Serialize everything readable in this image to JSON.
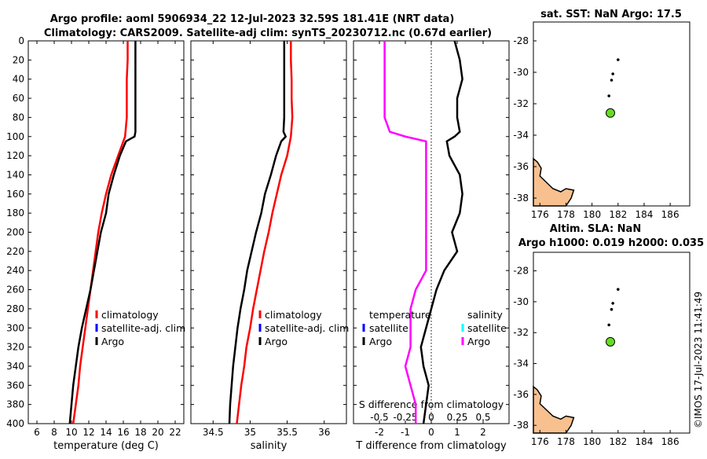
{
  "title_line1": "Argo profile: aoml 5906934_22 12-Jul-2023 32.59S 181.41E (NRT data)",
  "title_line2": "Climatology: CARS2009. Satellite-adj clim: synTS_20230712.nc (0.67d earlier)",
  "watermark": "©IMOS 17-Jul-2023 11:41:49",
  "colors": {
    "climatology": "#ff0000",
    "satellite": "#0000ff",
    "argo": "#000000",
    "argo_sal": "#ff00ff",
    "satellite_sal": "#00ffff",
    "land": "#f7c08e",
    "argo_dot": "#66dd22"
  },
  "depth_axis": {
    "ticks": [
      0,
      20,
      40,
      60,
      80,
      100,
      120,
      140,
      160,
      180,
      200,
      220,
      240,
      260,
      280,
      300,
      320,
      340,
      360,
      380,
      400
    ],
    "range": [
      0,
      400
    ]
  },
  "legend_main": {
    "climatology": "climatology",
    "satellite": "satellite-adj. clim",
    "argo": "Argo"
  },
  "legend_diff": {
    "temperature": "temperature",
    "salinity": "salinity",
    "satellite": "satellite",
    "argo": "Argo"
  },
  "chart_data": [
    {
      "type": "line",
      "xlabel": "temperature (deg C)",
      "xlim": [
        5,
        23
      ],
      "xticks": [
        6,
        8,
        10,
        12,
        14,
        16,
        18,
        20,
        22
      ],
      "series": [
        {
          "name": "climatology",
          "depth": [
            0,
            20,
            40,
            60,
            80,
            100,
            120,
            140,
            160,
            180,
            200,
            220,
            240,
            260,
            280,
            300,
            320,
            340,
            360,
            380,
            400
          ],
          "values": [
            16.5,
            16.5,
            16.4,
            16.4,
            16.4,
            16.2,
            15.4,
            14.6,
            14.0,
            13.5,
            13.1,
            12.8,
            12.5,
            12.2,
            11.9,
            11.6,
            11.3,
            11.0,
            10.8,
            10.5,
            10.2
          ]
        },
        {
          "name": "Argo",
          "depth": [
            0,
            20,
            40,
            60,
            80,
            95,
            100,
            105,
            120,
            140,
            160,
            180,
            200,
            220,
            240,
            260,
            280,
            300,
            320,
            340,
            360,
            380,
            400
          ],
          "values": [
            17.4,
            17.4,
            17.4,
            17.4,
            17.4,
            17.4,
            17.3,
            16.3,
            15.6,
            14.9,
            14.3,
            14.0,
            13.4,
            13.0,
            12.6,
            12.2,
            11.7,
            11.2,
            10.8,
            10.5,
            10.2,
            10.0,
            9.8
          ]
        }
      ]
    },
    {
      "type": "line",
      "xlabel": "salinity",
      "xlim": [
        34.2,
        36.3
      ],
      "xticks": [
        34.5,
        35,
        35.5,
        36
      ],
      "series": [
        {
          "name": "climatology",
          "depth": [
            0,
            20,
            40,
            60,
            80,
            100,
            120,
            140,
            160,
            180,
            200,
            220,
            240,
            260,
            280,
            300,
            320,
            340,
            360,
            380,
            400
          ],
          "values": [
            35.55,
            35.55,
            35.56,
            35.56,
            35.57,
            35.55,
            35.5,
            35.42,
            35.36,
            35.3,
            35.25,
            35.19,
            35.14,
            35.09,
            35.04,
            35.0,
            34.95,
            34.92,
            34.88,
            34.85,
            34.82
          ]
        },
        {
          "name": "Argo",
          "depth": [
            0,
            20,
            40,
            60,
            80,
            95,
            100,
            105,
            120,
            140,
            160,
            180,
            200,
            220,
            240,
            260,
            280,
            300,
            320,
            340,
            360,
            380,
            400
          ],
          "values": [
            35.46,
            35.46,
            35.46,
            35.46,
            35.46,
            35.45,
            35.48,
            35.42,
            35.35,
            35.28,
            35.2,
            35.15,
            35.08,
            35.02,
            34.96,
            34.92,
            34.87,
            34.83,
            34.8,
            34.77,
            34.75,
            34.73,
            34.72
          ]
        }
      ]
    },
    {
      "type": "line",
      "xlabel": "T difference from climatology",
      "xlim": [
        -3,
        3
      ],
      "xticks": [
        -2,
        -1,
        0,
        1,
        2
      ],
      "top_label": "S difference from climatology",
      "top_ticks": [
        "-0.5",
        "-0.25",
        "0",
        "0.25",
        "0.5"
      ],
      "series": [
        {
          "name": "T Argo",
          "depth": [
            0,
            20,
            40,
            60,
            80,
            95,
            100,
            105,
            120,
            140,
            160,
            180,
            200,
            220,
            240,
            260,
            280,
            300,
            320,
            340,
            360,
            380,
            400
          ],
          "values": [
            0.9,
            1.1,
            1.2,
            1.0,
            1.0,
            1.1,
            0.9,
            0.6,
            0.7,
            1.1,
            1.2,
            1.1,
            0.8,
            1.0,
            0.5,
            0.2,
            0.0,
            -0.2,
            -0.4,
            -0.3,
            -0.1,
            -0.2,
            -0.3
          ]
        },
        {
          "name": "S Argo",
          "depth": [
            0,
            20,
            40,
            60,
            80,
            95,
            100,
            105,
            120,
            140,
            160,
            180,
            200,
            220,
            240,
            260,
            280,
            300,
            320,
            340,
            360,
            380,
            400
          ],
          "values": [
            -0.45,
            -0.45,
            -0.45,
            -0.45,
            -0.45,
            -0.4,
            -0.25,
            -0.05,
            -0.05,
            -0.05,
            -0.05,
            -0.05,
            -0.05,
            -0.05,
            -0.05,
            -0.15,
            -0.2,
            -0.2,
            -0.2,
            -0.25,
            -0.2,
            -0.15,
            -0.15
          ]
        }
      ]
    },
    {
      "type": "scatter",
      "title": "sat. SST: NaN Argo: 17.5",
      "xlim": [
        175.5,
        187.5
      ],
      "ylim": [
        -38.5,
        -26.8
      ],
      "xticks": [
        176,
        178,
        180,
        182,
        184,
        186
      ],
      "yticks": [
        -28,
        -30,
        -32,
        -34,
        -36,
        -38
      ],
      "track": [
        [
          182.0,
          -29.2
        ],
        [
          181.6,
          -30.1
        ],
        [
          181.5,
          -30.5
        ],
        [
          181.3,
          -31.5
        ]
      ],
      "current": [
        181.41,
        -32.59
      ]
    },
    {
      "type": "scatter",
      "title": "Altim. SLA: NaN",
      "subtitle": "Argo h1000: 0.019 h2000: 0.035",
      "xlim": [
        175.5,
        187.5
      ],
      "ylim": [
        -38.5,
        -26.8
      ],
      "xticks": [
        176,
        178,
        180,
        182,
        184,
        186
      ],
      "yticks": [
        -28,
        -30,
        -32,
        -34,
        -36,
        -38
      ],
      "track": [
        [
          182.0,
          -29.2
        ],
        [
          181.6,
          -30.1
        ],
        [
          181.5,
          -30.5
        ],
        [
          181.3,
          -31.5
        ]
      ],
      "current": [
        181.41,
        -32.59
      ]
    }
  ]
}
